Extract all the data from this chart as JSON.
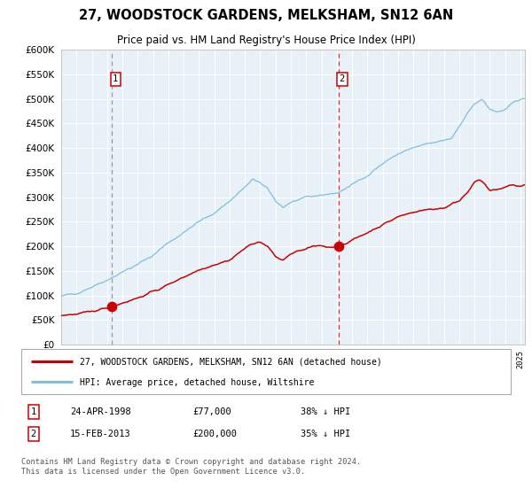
{
  "title": "27, WOODSTOCK GARDENS, MELKSHAM, SN12 6AN",
  "subtitle": "Price paid vs. HM Land Registry's House Price Index (HPI)",
  "legend_line1": "27, WOODSTOCK GARDENS, MELKSHAM, SN12 6AN (detached house)",
  "legend_line2": "HPI: Average price, detached house, Wiltshire",
  "sale1_date": "24-APR-1998",
  "sale1_price": 77000,
  "sale1_label": "38% ↓ HPI",
  "sale2_date": "15-FEB-2013",
  "sale2_price": 200000,
  "sale2_label": "35% ↓ HPI",
  "footer": "Contains HM Land Registry data © Crown copyright and database right 2024.\nThis data is licensed under the Open Government Licence v3.0.",
  "hpi_color": "#7fbfdf",
  "price_color": "#cc0000",
  "vline1_color": "#999999",
  "vline2_color": "#dd3333",
  "background_color": "#ddeeff",
  "plot_bg": "#e8f0f8",
  "ylim": [
    0,
    600000
  ],
  "yticks": [
    0,
    50000,
    100000,
    150000,
    200000,
    250000,
    300000,
    350000,
    400000,
    450000,
    500000,
    550000,
    600000
  ],
  "sale1_x": 1998.3,
  "sale2_x": 2013.1,
  "xlim_start": 1995.0,
  "xlim_end": 2025.3
}
